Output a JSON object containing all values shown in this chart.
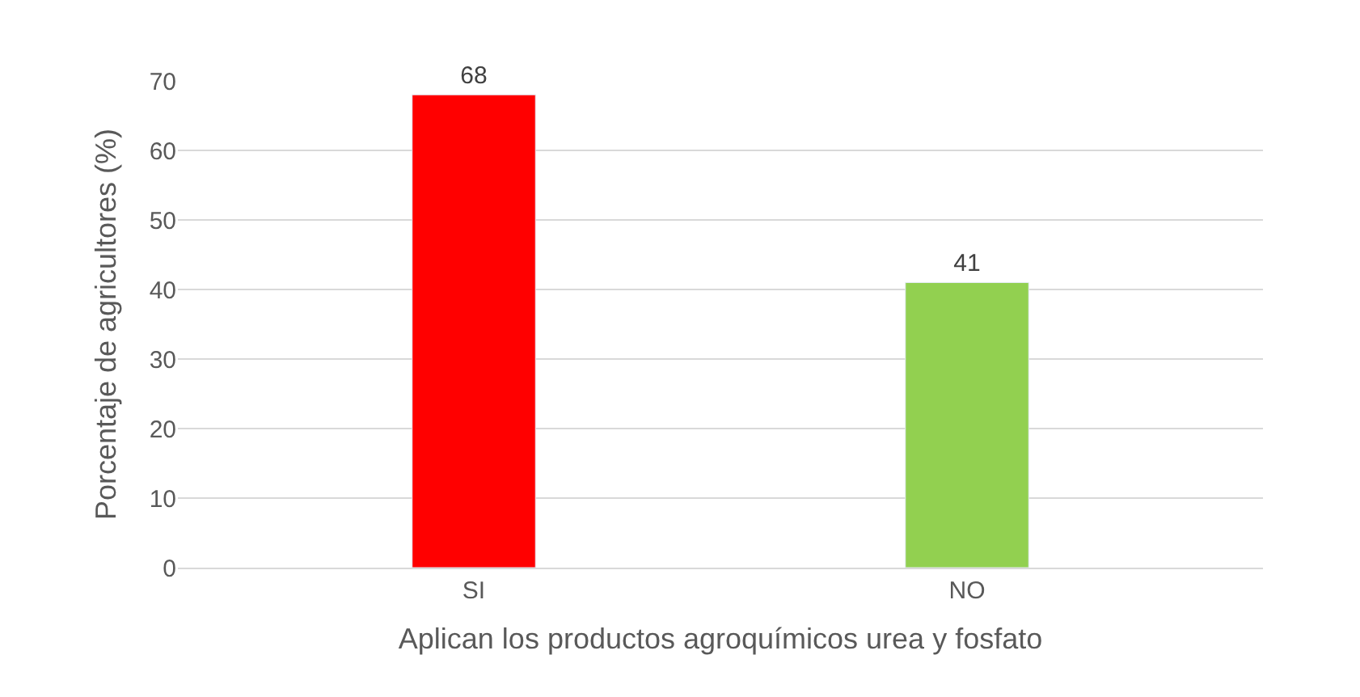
{
  "chart_data": {
    "type": "bar",
    "xlabel": "Aplican los productos agroquímicos urea y fosfato",
    "ylabel": "Porcentaje de agricultores (%)",
    "categories": [
      "SI",
      "NO"
    ],
    "values": [
      68,
      41
    ],
    "colors": [
      "#ff0000",
      "#92d050"
    ],
    "ylim": [
      0,
      70
    ],
    "yticks": [
      0,
      10,
      20,
      30,
      40,
      50,
      60,
      70
    ],
    "grid": "y",
    "data_labels": true
  }
}
